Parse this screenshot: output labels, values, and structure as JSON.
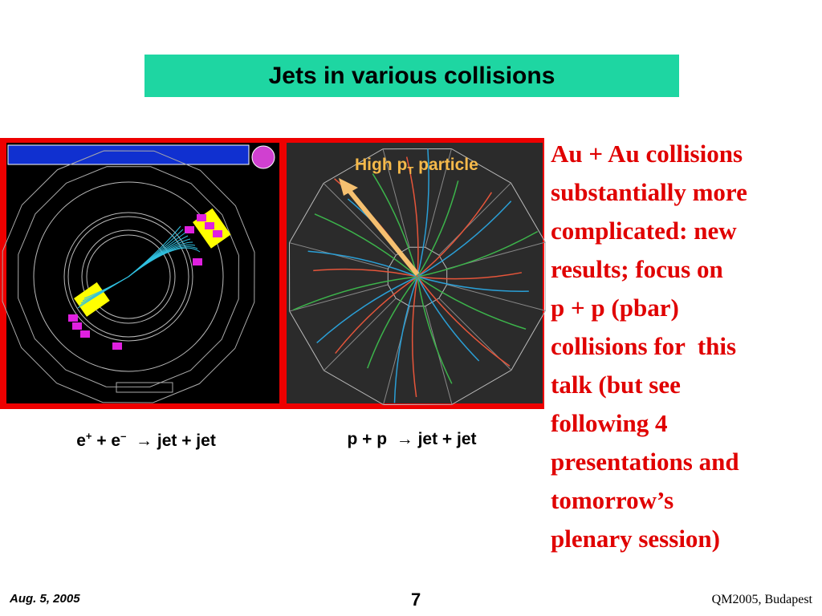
{
  "title": "Jets in various collisions",
  "annotation": [
    {
      "text": "High p"
    },
    {
      "sub": "T"
    },
    {
      "text": " particle"
    }
  ],
  "captions": [
    [
      {
        "text": "e"
      },
      {
        "sup": "+"
      },
      {
        "text": " + e"
      },
      {
        "sup": "–"
      },
      {
        "text": "  → jet + jet"
      }
    ],
    [
      {
        "text": "p + p  → jet + jet"
      }
    ]
  ],
  "body": [
    "Au + Au collisions",
    "substantially more",
    "complicated: new",
    "results; focus on",
    "p + p (pbar)",
    "collisions for  this",
    "talk (but see",
    "following 4",
    "presentations and",
    "tomorrow’s",
    "plenary session)"
  ],
  "footer": {
    "date": "Aug. 5, 2005",
    "page": "7",
    "venue": "QM2005, Budapest"
  }
}
